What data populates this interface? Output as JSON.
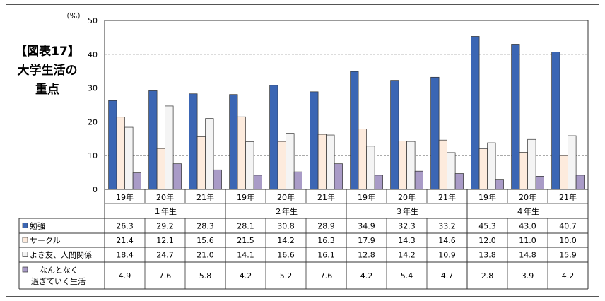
{
  "figure": {
    "label": "【図表17】",
    "title_line1": "大学生活の",
    "title_line2": "重点"
  },
  "chart_data": {
    "type": "bar",
    "unit_label": "（%）",
    "ylim": [
      0,
      50
    ],
    "yticks": [
      0,
      10,
      20,
      30,
      40,
      50
    ],
    "grid": true,
    "groups": [
      {
        "name": "１年生",
        "years": [
          "19年",
          "20年",
          "21年"
        ]
      },
      {
        "name": "２年生",
        "years": [
          "19年",
          "20年",
          "21年"
        ]
      },
      {
        "name": "３年生",
        "years": [
          "19年",
          "20年",
          "21年"
        ]
      },
      {
        "name": "４年生",
        "years": [
          "19年",
          "20年",
          "21年"
        ]
      }
    ],
    "series": [
      {
        "name": "勉強",
        "color": "#3B66B4",
        "values": [
          26.3,
          29.2,
          28.3,
          28.1,
          30.8,
          28.9,
          34.9,
          32.3,
          33.2,
          45.3,
          43.0,
          40.7
        ]
      },
      {
        "name": "サークル",
        "color": "#FDEBDD",
        "values": [
          21.4,
          12.1,
          15.6,
          21.5,
          14.2,
          16.3,
          17.9,
          14.3,
          14.6,
          12.0,
          11.0,
          10.0
        ]
      },
      {
        "name": "よき友、人間関係",
        "color": "#F4F4F4",
        "values": [
          18.4,
          24.7,
          21.0,
          14.1,
          16.6,
          16.1,
          12.8,
          14.2,
          10.9,
          13.8,
          14.8,
          15.9
        ]
      },
      {
        "name_line1": "なんとなく",
        "name_line2": "過ぎていく生活",
        "color": "#A99BC7",
        "values": [
          4.9,
          7.6,
          5.8,
          4.2,
          5.2,
          7.6,
          4.2,
          5.4,
          4.7,
          2.8,
          3.9,
          4.2
        ]
      }
    ],
    "table_values": [
      [
        "26.3",
        "29.2",
        "28.3",
        "28.1",
        "30.8",
        "28.9",
        "34.9",
        "32.3",
        "33.2",
        "45.3",
        "43.0",
        "40.7"
      ],
      [
        "21.4",
        "12.1",
        "15.6",
        "21.5",
        "14.2",
        "16.3",
        "17.9",
        "14.3",
        "14.6",
        "12.0",
        "11.0",
        "10.0"
      ],
      [
        "18.4",
        "24.7",
        "21.0",
        "14.1",
        "16.6",
        "16.1",
        "12.8",
        "14.2",
        "10.9",
        "13.8",
        "14.8",
        "15.9"
      ],
      [
        "4.9",
        "7.6",
        "5.8",
        "4.2",
        "5.2",
        "7.6",
        "4.2",
        "5.4",
        "4.7",
        "2.8",
        "3.9",
        "4.2"
      ]
    ]
  }
}
